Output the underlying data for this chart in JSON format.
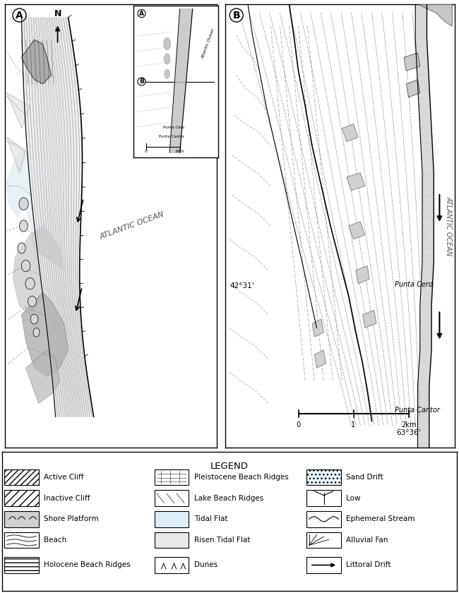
{
  "background_color": "#ffffff",
  "legend_title": "LEGEND",
  "legend_items_col1": [
    "Active Cliff",
    "Inactive Cliff",
    "Shore Platform",
    "Beach",
    "Holocene Beach Ridges"
  ],
  "legend_items_col2": [
    "Pleistocene Beach Ridges",
    "Lake Beach Ridges",
    "Tidal Flat",
    "Risen Tidal Flat",
    "Dunes"
  ],
  "legend_items_col3": [
    "Sand Drift",
    "Low",
    "Ephemeral Stream",
    "Alluvial Fan",
    "Littoral Drift"
  ],
  "panel_A_label": "A",
  "panel_B_label": "B",
  "atlantic_ocean": "ATLANTIC OCEAN",
  "north_label": "N",
  "lat_label": "42°31'",
  "lon_label": "63°36'",
  "punta_cero": "Punta Cero",
  "punta_cantor": "Punta Cantor",
  "scale_labels": [
    "0",
    "1",
    "2km"
  ],
  "inset_scale_labels": [
    "0",
    "2km"
  ],
  "atlantic_ocean_label": "Atlantic Ocean"
}
